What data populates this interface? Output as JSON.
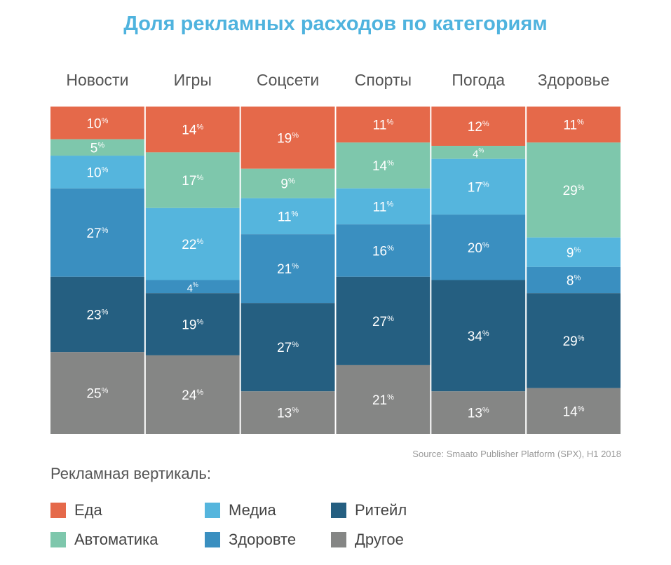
{
  "title": "Доля рекламных расходов по категориям",
  "source": "Source: Smaato Publisher Platform (SPX), H1 2018",
  "legend_title": "Рекламная вертикаль:",
  "percent_sign": "%",
  "chart_data": {
    "type": "bar",
    "stacked": true,
    "normalized": true,
    "categories": [
      "Новости",
      "Игры",
      "Соцсети",
      "Спорты",
      "Погода",
      "Здоровье"
    ],
    "series": [
      {
        "name": "Еда",
        "color": "#e5694a",
        "values": [
          10,
          14,
          19,
          11,
          12,
          11
        ]
      },
      {
        "name": "Автоматика",
        "color": "#7ec7ac",
        "values": [
          5,
          17,
          9,
          14,
          4,
          29
        ]
      },
      {
        "name": "Медиа",
        "color": "#55b5dd",
        "values": [
          10,
          22,
          11,
          11,
          17,
          9
        ]
      },
      {
        "name": "Здоровте",
        "color": "#3a8fc0",
        "values": [
          27,
          4,
          21,
          16,
          20,
          8
        ]
      },
      {
        "name": "Ритейл",
        "color": "#255f81",
        "values": [
          23,
          19,
          27,
          27,
          34,
          29
        ]
      },
      {
        "name": "Другое",
        "color": "#858685",
        "values": [
          25,
          24,
          13,
          21,
          13,
          14
        ]
      }
    ],
    "legend_position": "bottom",
    "grid": false
  }
}
